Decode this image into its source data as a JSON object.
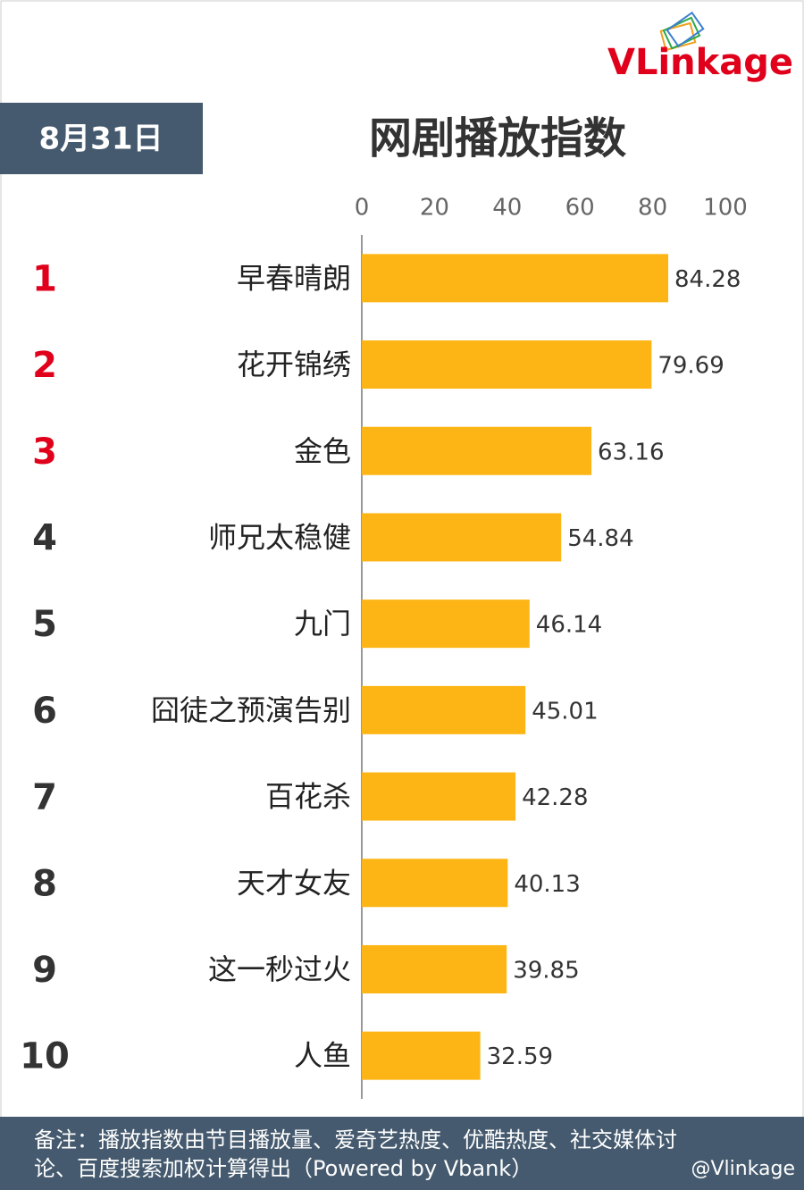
{
  "chart_data": {
    "type": "bar",
    "orientation": "horizontal",
    "logo": "VLinkage",
    "date": "8月31日",
    "title": "网剧播放指数",
    "ranks": [
      1,
      2,
      3,
      4,
      5,
      6,
      7,
      8,
      9,
      10
    ],
    "rank_color": "#333333",
    "highlight_color": "#e0001b",
    "highlight_count": 3,
    "categories": [
      "早春晴朗",
      "花开锦绣",
      "金色",
      "师兄太稳健",
      "九门",
      "囧徒之预演告别",
      "百花杀",
      "天才女友",
      "这一秒过火",
      "人鱼"
    ],
    "values": [
      84.28,
      79.69,
      63.16,
      54.84,
      46.14,
      45.01,
      42.28,
      40.13,
      39.85,
      32.59
    ],
    "color": "#fdb515",
    "xlim": [
      0,
      100
    ],
    "xticks": [
      0,
      20,
      40,
      60,
      80,
      100
    ],
    "grid": false,
    "note": [
      "备注：播放指数由节目播放量、爱奇艺热度、优酷热度、社交媒体讨",
      "论、百度搜索加权计算得出（Powered by Vbank）"
    ],
    "watermark": "@Vlinkage"
  }
}
